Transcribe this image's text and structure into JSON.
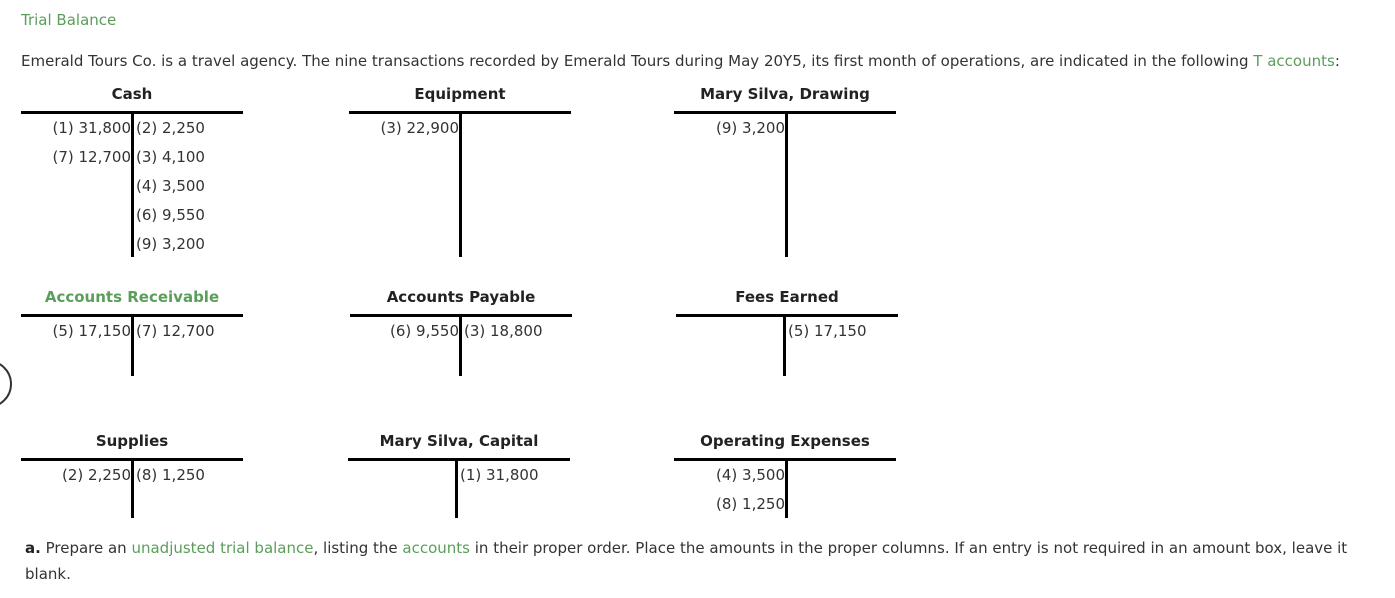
{
  "title": "Trial Balance",
  "intro": {
    "text": "Emerald Tours Co. is a travel agency. The nine transactions recorded by Emerald Tours during May 20Y5, its first month of operations, are indicated in the following ",
    "link": "T accounts",
    "end": ":"
  },
  "accounts": [
    {
      "name": "Cash",
      "debits": [
        "(1) 31,800",
        "(7) 12,700"
      ],
      "credits": [
        "(2) 2,250",
        "(3) 4,100",
        "(4) 3,500",
        "(6) 9,550",
        "(9) 3,200"
      ]
    },
    {
      "name": "Equipment",
      "debits": [
        "(3) 22,900"
      ],
      "credits": []
    },
    {
      "name": "Mary Silva, Drawing",
      "debits": [
        "(9) 3,200"
      ],
      "credits": []
    },
    {
      "name": "Accounts Receivable",
      "debits": [
        "(5) 17,150"
      ],
      "credits": [
        "(7) 12,700"
      ]
    },
    {
      "name": "Accounts Payable",
      "debits": [
        "(6) 9,550"
      ],
      "credits": [
        "(3) 18,800"
      ]
    },
    {
      "name": "Fees Earned",
      "debits": [],
      "credits": [
        "(5) 17,150"
      ]
    },
    {
      "name": "Supplies",
      "debits": [
        "(2) 2,250"
      ],
      "credits": [
        "(8) 1,250"
      ]
    },
    {
      "name": "Mary Silva, Capital",
      "debits": [],
      "credits": [
        "(1) 31,800"
      ]
    },
    {
      "name": "Operating Expenses",
      "debits": [
        "(4) 3,500",
        "(8) 1,250"
      ],
      "credits": []
    }
  ],
  "question": {
    "label": "a.",
    "t1": " Prepare an ",
    "link1": "unadjusted trial balance",
    "t2": ", listing the ",
    "link2": "accounts",
    "t3": " in their proper order. Place the amounts in the proper columns. If an entry is not required in an amount box, leave it blank."
  }
}
